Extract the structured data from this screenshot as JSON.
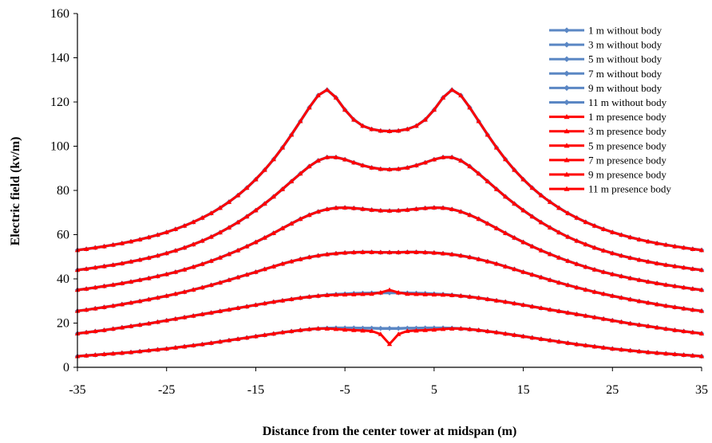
{
  "chart_data": {
    "type": "line",
    "title": "",
    "xlabel": "Distance from the center tower at midspan (m)",
    "ylabel": "Electric field (kv/m)",
    "xlim": [
      -35,
      35
    ],
    "ylim": [
      0,
      160
    ],
    "xticks": [
      "-35",
      "-25",
      "-15",
      "-5",
      "5",
      "15",
      "25",
      "35"
    ],
    "yticks": [
      "0",
      "20",
      "40",
      "60",
      "80",
      "100",
      "120",
      "140",
      "160"
    ],
    "grid": false,
    "legend_position": "top-right",
    "colors": {
      "without": "#5b87c4",
      "presence": "#ff0000"
    },
    "x": [
      -35,
      -34,
      -33,
      -32,
      -31,
      -30,
      -29,
      -28,
      -27,
      -26,
      -25,
      -24,
      -23,
      -22,
      -21,
      -20,
      -19,
      -18,
      -17,
      -16,
      -15,
      -14,
      -13,
      -12,
      -11,
      -10,
      -9,
      -8,
      -7,
      -6,
      -5,
      -4,
      -3,
      -2,
      -1,
      0,
      1,
      2,
      3,
      4,
      5,
      6,
      7,
      8,
      9,
      10,
      11,
      12,
      13,
      14,
      15,
      16,
      17,
      18,
      19,
      20,
      21,
      22,
      23,
      24,
      25,
      26,
      27,
      28,
      29,
      30,
      31,
      32,
      33,
      34,
      35
    ],
    "series": [
      {
        "name": "1 m without body",
        "group": "without",
        "values": [
          5,
          5.3,
          5.6,
          5.9,
          6.2,
          6.5,
          6.8,
          7.2,
          7.6,
          8,
          8.4,
          8.9,
          9.4,
          9.9,
          10.4,
          11,
          11.6,
          12.2,
          12.8,
          13.4,
          14,
          14.6,
          15.2,
          15.8,
          16.3,
          16.8,
          17.2,
          17.5,
          17.7,
          17.8,
          17.8,
          17.8,
          17.7,
          17.7,
          17.6,
          17.6,
          17.6,
          17.7,
          17.7,
          17.8,
          17.8,
          17.8,
          17.7,
          17.5,
          17.2,
          16.8,
          16.3,
          15.8,
          15.2,
          14.6,
          14,
          13.4,
          12.8,
          12.2,
          11.6,
          11,
          10.4,
          9.9,
          9.4,
          8.9,
          8.4,
          8,
          7.6,
          7.2,
          6.8,
          6.5,
          6.2,
          5.9,
          5.6,
          5.3,
          5
        ]
      },
      {
        "name": "3 m without body",
        "group": "without",
        "values": [
          15.3,
          15.8,
          16.3,
          16.8,
          17.4,
          18,
          18.6,
          19.2,
          19.8,
          20.5,
          21.2,
          21.9,
          22.6,
          23.3,
          24,
          24.7,
          25.4,
          26.1,
          26.8,
          27.5,
          28.2,
          28.9,
          29.6,
          30.2,
          30.8,
          31.4,
          31.9,
          32.3,
          32.7,
          33,
          33.2,
          33.4,
          33.5,
          33.6,
          33.7,
          33.7,
          33.7,
          33.6,
          33.5,
          33.4,
          33.2,
          33,
          32.7,
          32.3,
          31.9,
          31.4,
          30.8,
          30.2,
          29.6,
          28.9,
          28.2,
          27.5,
          26.8,
          26.1,
          25.4,
          24.7,
          24,
          23.3,
          22.6,
          21.9,
          21.2,
          20.5,
          19.8,
          19.2,
          18.6,
          18,
          17.4,
          16.8,
          16.3,
          15.8,
          15.3
        ]
      },
      {
        "name": "5 m without body",
        "group": "without",
        "values": [
          25.5,
          26,
          26.6,
          27.2,
          27.8,
          28.5,
          29.2,
          29.9,
          30.7,
          31.5,
          32.3,
          33.2,
          34.1,
          35.1,
          36.1,
          37.2,
          38.3,
          39.5,
          40.7,
          41.9,
          43.1,
          44.4,
          45.6,
          46.8,
          47.9,
          48.9,
          49.8,
          50.5,
          51.1,
          51.5,
          51.8,
          52,
          52.1,
          52.1,
          52,
          52,
          52,
          52.1,
          52.1,
          52,
          51.8,
          51.5,
          51.1,
          50.5,
          49.8,
          48.9,
          47.9,
          46.8,
          45.6,
          44.4,
          43.1,
          41.9,
          40.7,
          39.5,
          38.3,
          37.2,
          36.1,
          35.1,
          34.1,
          33.2,
          32.3,
          31.5,
          30.7,
          29.9,
          29.2,
          28.5,
          27.8,
          27.2,
          26.6,
          26,
          25.5
        ]
      },
      {
        "name": "7 m without body",
        "group": "without",
        "values": [
          35,
          35.5,
          36.1,
          36.7,
          37.3,
          38,
          38.7,
          39.5,
          40.3,
          41.2,
          42.1,
          43.1,
          44.2,
          45.4,
          46.7,
          48.1,
          49.6,
          51.2,
          52.9,
          54.7,
          56.6,
          58.6,
          60.7,
          62.9,
          65,
          67.1,
          68.9,
          70.4,
          71.5,
          72.1,
          72.2,
          72,
          71.6,
          71.2,
          70.9,
          70.8,
          70.9,
          71.2,
          71.6,
          72,
          72.2,
          72.1,
          71.5,
          70.4,
          68.9,
          67.1,
          65,
          62.9,
          60.7,
          58.6,
          56.6,
          54.7,
          52.9,
          51.2,
          49.6,
          48.1,
          46.7,
          45.4,
          44.2,
          43.1,
          42.1,
          41.2,
          40.3,
          39.5,
          38.7,
          38,
          37.3,
          36.7,
          36.1,
          35.5,
          35
        ]
      },
      {
        "name": "9 m without body",
        "group": "without",
        "values": [
          44,
          44.5,
          45.1,
          45.7,
          46.3,
          47,
          47.8,
          48.6,
          49.5,
          50.5,
          51.6,
          52.8,
          54.1,
          55.6,
          57.2,
          59,
          61,
          63.2,
          65.6,
          68.2,
          71,
          74,
          77.2,
          80.6,
          84.1,
          87.6,
          90.9,
          93.5,
          95,
          95,
          94,
          92.6,
          91.3,
          90.3,
          89.7,
          89.5,
          89.7,
          90.3,
          91.3,
          92.6,
          94,
          95,
          95,
          93.5,
          90.9,
          87.6,
          84.1,
          80.6,
          77.2,
          74,
          71,
          68.2,
          65.6,
          63.2,
          61,
          59,
          57.2,
          55.6,
          54.1,
          52.8,
          51.6,
          50.5,
          49.5,
          48.6,
          47.8,
          47,
          46.3,
          45.7,
          45.1,
          44.5,
          44
        ]
      },
      {
        "name": "11 m without body",
        "group": "without",
        "values": [
          53,
          53.5,
          54.1,
          54.7,
          55.4,
          56.1,
          56.9,
          57.8,
          58.8,
          59.9,
          61.1,
          62.5,
          64,
          65.7,
          67.6,
          69.7,
          72.1,
          74.8,
          77.8,
          81.2,
          85,
          89.3,
          94.1,
          99.4,
          105.2,
          111.3,
          117.5,
          123,
          125.5,
          122,
          116.5,
          112,
          109.2,
          107.7,
          107,
          106.8,
          107,
          107.7,
          109.2,
          112,
          116.5,
          122,
          125.5,
          123,
          117.5,
          111.3,
          105.2,
          99.4,
          94.1,
          89.3,
          85,
          81.2,
          77.8,
          74.8,
          72.1,
          69.7,
          67.6,
          65.7,
          64,
          62.5,
          61.1,
          59.9,
          58.8,
          57.8,
          56.9,
          56.1,
          55.4,
          54.7,
          54.1,
          53.5,
          53
        ]
      },
      {
        "name": "1 m presence body",
        "group": "presence",
        "values": [
          5,
          5.3,
          5.6,
          5.9,
          6.2,
          6.5,
          6.8,
          7.2,
          7.6,
          8,
          8.4,
          8.9,
          9.4,
          9.9,
          10.4,
          11,
          11.6,
          12.2,
          12.8,
          13.4,
          14,
          14.6,
          15.2,
          15.8,
          16.3,
          16.8,
          17.2,
          17.5,
          17.5,
          17.3,
          17,
          16.8,
          16.6,
          16.4,
          15,
          10.5,
          15,
          16.4,
          16.6,
          16.8,
          17,
          17.3,
          17.5,
          17.5,
          17.2,
          16.8,
          16.3,
          15.8,
          15.2,
          14.6,
          14,
          13.4,
          12.8,
          12.2,
          11.6,
          11,
          10.4,
          9.9,
          9.4,
          8.9,
          8.4,
          8,
          7.6,
          7.2,
          6.8,
          6.5,
          6.2,
          5.9,
          5.6,
          5.3,
          5
        ]
      },
      {
        "name": "3 m presence body",
        "group": "presence",
        "values": [
          15.3,
          15.8,
          16.3,
          16.8,
          17.4,
          18,
          18.6,
          19.2,
          19.8,
          20.5,
          21.2,
          21.9,
          22.6,
          23.3,
          24,
          24.7,
          25.4,
          26.1,
          26.8,
          27.5,
          28.2,
          28.9,
          29.6,
          30.2,
          30.8,
          31.4,
          31.9,
          32.3,
          32.6,
          32.8,
          32.9,
          33,
          33.1,
          33.2,
          33.8,
          35,
          33.8,
          33.2,
          33.1,
          33,
          32.9,
          32.8,
          32.6,
          32.3,
          31.9,
          31.4,
          30.8,
          30.2,
          29.6,
          28.9,
          28.2,
          27.5,
          26.8,
          26.1,
          25.4,
          24.7,
          24,
          23.3,
          22.6,
          21.9,
          21.2,
          20.5,
          19.8,
          19.2,
          18.6,
          18,
          17.4,
          16.8,
          16.3,
          15.8,
          15.3
        ]
      },
      {
        "name": "5 m presence body",
        "group": "presence",
        "values": [
          25.5,
          26,
          26.6,
          27.2,
          27.8,
          28.5,
          29.2,
          29.9,
          30.7,
          31.5,
          32.3,
          33.2,
          34.1,
          35.1,
          36.1,
          37.2,
          38.3,
          39.5,
          40.7,
          41.9,
          43.1,
          44.4,
          45.6,
          46.8,
          47.9,
          48.9,
          49.8,
          50.5,
          51.1,
          51.5,
          51.8,
          52,
          52.1,
          52.1,
          52,
          52,
          52,
          52.1,
          52.1,
          52,
          51.8,
          51.5,
          51.1,
          50.5,
          49.8,
          48.9,
          47.9,
          46.8,
          45.6,
          44.4,
          43.1,
          41.9,
          40.7,
          39.5,
          38.3,
          37.2,
          36.1,
          35.1,
          34.1,
          33.2,
          32.3,
          31.5,
          30.7,
          29.9,
          29.2,
          28.5,
          27.8,
          27.2,
          26.6,
          26,
          25.5
        ]
      },
      {
        "name": "7 m presence body",
        "group": "presence",
        "values": [
          35,
          35.5,
          36.1,
          36.7,
          37.3,
          38,
          38.7,
          39.5,
          40.3,
          41.2,
          42.1,
          43.1,
          44.2,
          45.4,
          46.7,
          48.1,
          49.6,
          51.2,
          52.9,
          54.7,
          56.6,
          58.6,
          60.7,
          62.9,
          65,
          67.1,
          68.9,
          70.4,
          71.5,
          72.1,
          72.2,
          72,
          71.6,
          71.2,
          70.9,
          70.8,
          70.9,
          71.2,
          71.6,
          72,
          72.2,
          72.1,
          71.5,
          70.4,
          68.9,
          67.1,
          65,
          62.9,
          60.7,
          58.6,
          56.6,
          54.7,
          52.9,
          51.2,
          49.6,
          48.1,
          46.7,
          45.4,
          44.2,
          43.1,
          42.1,
          41.2,
          40.3,
          39.5,
          38.7,
          38,
          37.3,
          36.7,
          36.1,
          35.5,
          35
        ]
      },
      {
        "name": "9 m presence body",
        "group": "presence",
        "values": [
          44,
          44.5,
          45.1,
          45.7,
          46.3,
          47,
          47.8,
          48.6,
          49.5,
          50.5,
          51.6,
          52.8,
          54.1,
          55.6,
          57.2,
          59,
          61,
          63.2,
          65.6,
          68.2,
          71,
          74,
          77.2,
          80.6,
          84.1,
          87.6,
          90.9,
          93.5,
          95,
          95,
          94,
          92.6,
          91.3,
          90.3,
          89.7,
          89.5,
          89.7,
          90.3,
          91.3,
          92.6,
          94,
          95,
          95,
          93.5,
          90.9,
          87.6,
          84.1,
          80.6,
          77.2,
          74,
          71,
          68.2,
          65.6,
          63.2,
          61,
          59,
          57.2,
          55.6,
          54.1,
          52.8,
          51.6,
          50.5,
          49.5,
          48.6,
          47.8,
          47,
          46.3,
          45.7,
          45.1,
          44.5,
          44
        ]
      },
      {
        "name": "11 m presence body",
        "group": "presence",
        "values": [
          53,
          53.5,
          54.1,
          54.7,
          55.4,
          56.1,
          56.9,
          57.8,
          58.8,
          59.9,
          61.1,
          62.5,
          64,
          65.7,
          67.6,
          69.7,
          72.1,
          74.8,
          77.8,
          81.2,
          85,
          89.3,
          94.1,
          99.4,
          105.2,
          111.3,
          117.5,
          123,
          125.5,
          122,
          116.5,
          112,
          109.2,
          107.7,
          107,
          106.8,
          107,
          107.7,
          109.2,
          112,
          116.5,
          122,
          125.5,
          123,
          117.5,
          111.3,
          105.2,
          99.4,
          94.1,
          89.3,
          85,
          81.2,
          77.8,
          74.8,
          72.1,
          69.7,
          67.6,
          65.7,
          64,
          62.5,
          61.1,
          59.9,
          58.8,
          57.8,
          56.9,
          56.1,
          55.4,
          54.7,
          54.1,
          53.5,
          53
        ]
      }
    ]
  }
}
